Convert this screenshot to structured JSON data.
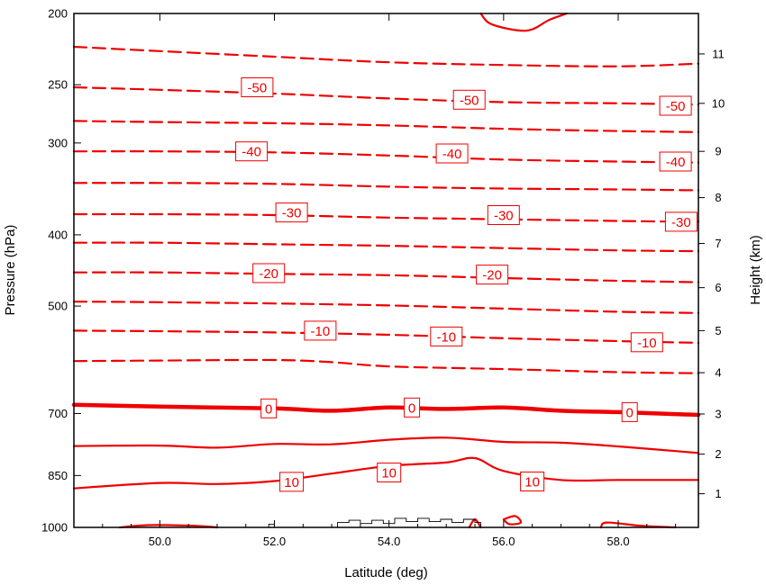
{
  "chart_data": {
    "type": "contour",
    "xlabel": "Latitude (deg)",
    "ylabel": "Pressure (hPa)",
    "y2label": "Height (km)",
    "xlim": [
      48.5,
      59.4
    ],
    "ylim": [
      1000,
      200
    ],
    "y_scale": "log",
    "x_ticks": [
      50.0,
      52.0,
      54.0,
      56.0,
      58.0
    ],
    "x_tick_labels": [
      "50.0",
      "52.0",
      "54.0",
      "56.0",
      "58.0"
    ],
    "y_ticks": [
      1000,
      850,
      700,
      500,
      400,
      300,
      250,
      200
    ],
    "y_tick_labels": [
      "1000",
      "850",
      "700",
      "500",
      "400",
      "300",
      "250",
      "200"
    ],
    "y2_ticks": [
      {
        "km": 1,
        "hpa": 900
      },
      {
        "km": 2,
        "hpa": 795
      },
      {
        "km": 3,
        "hpa": 701
      },
      {
        "km": 4,
        "hpa": 616
      },
      {
        "km": 5,
        "hpa": 540
      },
      {
        "km": 6,
        "hpa": 472
      },
      {
        "km": 7,
        "hpa": 411
      },
      {
        "km": 8,
        "hpa": 356
      },
      {
        "km": 9,
        "hpa": 308
      },
      {
        "km": 10,
        "hpa": 265
      },
      {
        "km": 11,
        "hpa": 227
      }
    ],
    "line_color": "#ee0000",
    "terrain_color": "#000000",
    "contours": [
      {
        "level": -60,
        "style": "dashed",
        "points": [
          [
            48.5,
            222
          ],
          [
            50,
            225
          ],
          [
            52,
            229
          ],
          [
            54,
            233
          ],
          [
            56,
            235
          ],
          [
            58,
            236
          ],
          [
            59.4,
            234
          ]
        ]
      },
      {
        "level": -50,
        "style": "dashed",
        "points": [
          [
            48.5,
            252
          ],
          [
            50,
            254
          ],
          [
            52,
            257
          ],
          [
            54,
            261
          ],
          [
            56,
            264
          ],
          [
            58,
            265
          ],
          [
            59.4,
            266
          ]
        ]
      },
      {
        "level": -45,
        "style": "dashed",
        "points": [
          [
            48.5,
            280
          ],
          [
            50,
            281
          ],
          [
            52,
            282
          ],
          [
            54,
            284
          ],
          [
            56,
            287
          ],
          [
            58,
            289
          ],
          [
            59.4,
            290
          ]
        ]
      },
      {
        "level": -40,
        "style": "dashed",
        "points": [
          [
            48.5,
            308
          ],
          [
            50,
            308
          ],
          [
            52,
            309
          ],
          [
            54,
            312
          ],
          [
            56,
            316
          ],
          [
            58,
            318
          ],
          [
            59.4,
            319
          ]
        ]
      },
      {
        "level": -35,
        "style": "dashed",
        "points": [
          [
            48.5,
            340
          ],
          [
            50,
            340
          ],
          [
            52,
            341
          ],
          [
            54,
            344
          ],
          [
            56,
            346
          ],
          [
            58,
            347
          ],
          [
            59.4,
            348
          ]
        ]
      },
      {
        "level": -30,
        "style": "dashed",
        "points": [
          [
            48.5,
            375
          ],
          [
            50,
            375
          ],
          [
            52,
            376
          ],
          [
            54,
            379
          ],
          [
            56,
            381
          ],
          [
            58,
            383
          ],
          [
            59.4,
            384
          ]
        ]
      },
      {
        "level": -25,
        "style": "dashed",
        "points": [
          [
            48.5,
            410
          ],
          [
            50,
            410
          ],
          [
            52,
            412
          ],
          [
            54,
            414
          ],
          [
            56,
            417
          ],
          [
            58,
            420
          ],
          [
            59.4,
            421
          ]
        ]
      },
      {
        "level": -20,
        "style": "dashed",
        "points": [
          [
            48.5,
            450
          ],
          [
            50,
            450
          ],
          [
            52,
            452
          ],
          [
            54,
            454
          ],
          [
            56,
            458
          ],
          [
            58,
            462
          ],
          [
            59.4,
            464
          ]
        ]
      },
      {
        "level": -15,
        "style": "dashed",
        "points": [
          [
            48.5,
            493
          ],
          [
            50,
            494
          ],
          [
            52,
            496
          ],
          [
            54,
            499
          ],
          [
            56,
            504
          ],
          [
            58,
            509
          ],
          [
            59.4,
            511
          ]
        ]
      },
      {
        "level": -10,
        "style": "dashed",
        "points": [
          [
            48.5,
            540
          ],
          [
            50,
            541
          ],
          [
            52,
            543
          ],
          [
            54,
            547
          ],
          [
            56,
            553
          ],
          [
            58,
            558
          ],
          [
            59.4,
            561
          ]
        ]
      },
      {
        "level": -5,
        "style": "dashed",
        "points": [
          [
            48.5,
            594
          ],
          [
            50,
            593
          ],
          [
            52,
            592
          ],
          [
            53,
            596
          ],
          [
            54,
            604
          ],
          [
            56,
            609
          ],
          [
            58,
            615
          ],
          [
            59.4,
            617
          ]
        ]
      },
      {
        "level": 0,
        "style": "thick",
        "points": [
          [
            48.5,
            681
          ],
          [
            50,
            685
          ],
          [
            52,
            689
          ],
          [
            53,
            694
          ],
          [
            54,
            687
          ],
          [
            55,
            690
          ],
          [
            56,
            687
          ],
          [
            57,
            694
          ],
          [
            58,
            697
          ],
          [
            59.4,
            703
          ]
        ]
      },
      {
        "level": 5,
        "style": "solid",
        "points": [
          [
            48.5,
            775
          ],
          [
            50,
            774
          ],
          [
            51,
            779
          ],
          [
            52,
            770
          ],
          [
            53,
            771
          ],
          [
            54,
            760
          ],
          [
            55,
            755
          ],
          [
            56,
            765
          ],
          [
            57,
            767
          ],
          [
            58,
            776
          ],
          [
            59.4,
            792
          ]
        ]
      },
      {
        "level": 10,
        "style": "solid",
        "points": [
          [
            48.5,
            885
          ],
          [
            50,
            870
          ],
          [
            51,
            873
          ],
          [
            52,
            865
          ],
          [
            53,
            845
          ],
          [
            54,
            825
          ],
          [
            55,
            816
          ],
          [
            55.5,
            805
          ],
          [
            56,
            838
          ],
          [
            57,
            862
          ],
          [
            58,
            862
          ],
          [
            59.4,
            862
          ]
        ]
      },
      {
        "level": 15,
        "style": "solid",
        "points": [
          [
            49.3,
            1000
          ],
          [
            49.8,
            993
          ],
          [
            50.6,
            995
          ],
          [
            51,
            1000
          ]
        ]
      },
      {
        "level": 15,
        "style": "solid",
        "points": [
          [
            57.7,
            1000
          ],
          [
            57.8,
            985
          ],
          [
            58.4,
            995
          ],
          [
            59,
            1000
          ]
        ]
      },
      {
        "level": 15,
        "style": "solid",
        "points": [
          [
            55.4,
            1000
          ],
          [
            55.5,
            975
          ],
          [
            55.6,
            1000
          ]
        ]
      },
      {
        "level": 15,
        "style": "solid",
        "points": [
          [
            56.0,
            975
          ],
          [
            56.2,
            965
          ],
          [
            56.3,
            985
          ],
          [
            56.1,
            990
          ],
          [
            56.0,
            975
          ]
        ]
      },
      {
        "level": -65,
        "style": "solid",
        "points": [
          [
            55.6,
            200
          ],
          [
            55.8,
            207
          ],
          [
            56.4,
            211
          ],
          [
            56.8,
            204
          ],
          [
            57.1,
            200
          ]
        ]
      }
    ],
    "contour_labels": [
      {
        "text": "-50",
        "lat": 51.7,
        "hpa": 252
      },
      {
        "text": "-50",
        "lat": 55.4,
        "hpa": 262
      },
      {
        "text": "-50",
        "lat": 59.0,
        "hpa": 267
      },
      {
        "text": "-40",
        "lat": 51.6,
        "hpa": 308
      },
      {
        "text": "-40",
        "lat": 55.1,
        "hpa": 310
      },
      {
        "text": "-40",
        "lat": 59.0,
        "hpa": 318
      },
      {
        "text": "-30",
        "lat": 52.3,
        "hpa": 373
      },
      {
        "text": "-30",
        "lat": 56.0,
        "hpa": 376
      },
      {
        "text": "-30",
        "lat": 59.1,
        "hpa": 384
      },
      {
        "text": "-20",
        "lat": 51.9,
        "hpa": 451
      },
      {
        "text": "-20",
        "lat": 55.8,
        "hpa": 453
      },
      {
        "text": "-10",
        "lat": 52.8,
        "hpa": 540
      },
      {
        "text": "-10",
        "lat": 55.0,
        "hpa": 550
      },
      {
        "text": "-10",
        "lat": 58.5,
        "hpa": 560
      },
      {
        "text": "0",
        "lat": 51.9,
        "hpa": 689
      },
      {
        "text": "0",
        "lat": 54.4,
        "hpa": 687
      },
      {
        "text": "0",
        "lat": 58.2,
        "hpa": 697
      },
      {
        "text": "10",
        "lat": 52.3,
        "hpa": 867
      },
      {
        "text": "10",
        "lat": 54.0,
        "hpa": 842
      },
      {
        "text": "10",
        "lat": 56.5,
        "hpa": 866
      }
    ],
    "terrain": [
      [
        51.9,
        1000
      ],
      [
        51.9,
        990
      ],
      [
        52.0,
        990
      ],
      [
        52.0,
        1000
      ],
      [
        53.1,
        1000
      ],
      [
        53.1,
        985
      ],
      [
        53.3,
        985
      ],
      [
        53.3,
        978
      ],
      [
        53.5,
        978
      ],
      [
        53.5,
        988
      ],
      [
        53.7,
        988
      ],
      [
        53.7,
        978
      ],
      [
        53.9,
        978
      ],
      [
        53.9,
        988
      ],
      [
        54.1,
        988
      ],
      [
        54.1,
        972
      ],
      [
        54.3,
        972
      ],
      [
        54.3,
        982
      ],
      [
        54.5,
        982
      ],
      [
        54.5,
        972
      ],
      [
        54.7,
        972
      ],
      [
        54.7,
        982
      ],
      [
        54.9,
        982
      ],
      [
        54.9,
        975
      ],
      [
        55.1,
        975
      ],
      [
        55.1,
        985
      ],
      [
        55.3,
        985
      ],
      [
        55.3,
        975
      ],
      [
        55.5,
        975
      ],
      [
        55.5,
        985
      ],
      [
        55.6,
        985
      ],
      [
        55.6,
        1000
      ]
    ]
  }
}
